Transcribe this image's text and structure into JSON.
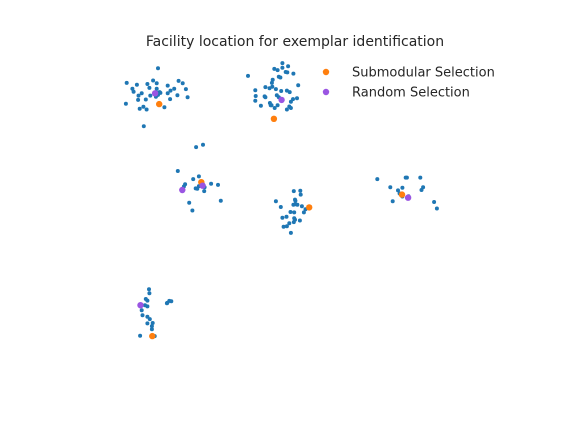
{
  "chart_data": {
    "type": "scatter",
    "title": "Facility location for exemplar identification",
    "xlabel": "",
    "ylabel": "",
    "axes_visible": false,
    "grid": false,
    "xlim": [
      -1,
      10
    ],
    "ylim": [
      -0.5,
      8.5
    ],
    "legend": {
      "placement": "top-right",
      "entries": [
        "Submodular Selection",
        "Random Selection"
      ]
    },
    "series": [
      {
        "name": "",
        "role": "data-points",
        "color": "#1f77b4",
        "points": [
          [
            1.0,
            7.71
          ],
          [
            1.07,
            7.29
          ],
          [
            0.64,
            7.32
          ],
          [
            1.09,
            7.64
          ],
          [
            0.91,
            7.52
          ],
          [
            0.49,
            7.5
          ],
          [
            0.52,
            7.42
          ],
          [
            1.42,
            7.23
          ],
          [
            1.52,
            7.5
          ],
          [
            1.18,
            7.39
          ],
          [
            1.36,
            7.58
          ],
          [
            1.43,
            7.45
          ],
          [
            0.63,
            7.21
          ],
          [
            0.6,
            7.6
          ],
          [
            0.35,
            7.65
          ],
          [
            0.84,
            6.96
          ],
          [
            0.82,
            7.22
          ],
          [
            1.36,
            7.38
          ],
          [
            0.67,
            6.98
          ],
          [
            1.12,
            7.34
          ],
          [
            1.16,
            7.41
          ],
          [
            1.63,
            7.7
          ],
          [
            0.33,
            7.11
          ],
          [
            1.81,
            7.49
          ],
          [
            1.6,
            7.33
          ],
          [
            1.73,
            7.64
          ],
          [
            0.93,
            7.32
          ],
          [
            1.09,
            7.5
          ],
          [
            0.77,
            6.53
          ],
          [
            1.12,
            8.03
          ],
          [
            1.28,
            7.02
          ],
          [
            0.72,
            7.38
          ],
          [
            1.85,
            7.28
          ],
          [
            0.76,
            7.03
          ],
          [
            1.08,
            7.4
          ],
          [
            0.86,
            7.62
          ],
          [
            4.1,
            7.81
          ],
          [
            4.31,
            7.92
          ],
          [
            3.87,
            7.51
          ],
          [
            3.92,
            7.07
          ],
          [
            4.3,
            7.45
          ],
          [
            3.66,
            7.06
          ],
          [
            4.05,
            7.33
          ],
          [
            3.52,
            7.19
          ],
          [
            4.0,
            7.0
          ],
          [
            4.36,
            7.04
          ],
          [
            4.4,
            7.16
          ],
          [
            4.45,
            7.23
          ],
          [
            3.75,
            7.3
          ],
          [
            4.33,
            8.08
          ],
          [
            4.55,
            7.25
          ],
          [
            3.94,
            7.55
          ],
          [
            3.93,
            7.65
          ],
          [
            4.19,
            8.04
          ],
          [
            3.52,
            7.46
          ],
          [
            4.1,
            7.28
          ],
          [
            4.37,
            7.41
          ],
          [
            4.16,
            7.44
          ],
          [
            3.88,
            7.13
          ],
          [
            4.07,
            7.98
          ],
          [
            4.07,
            7.07
          ],
          [
            4.46,
            7.89
          ],
          [
            3.95,
            7.73
          ],
          [
            3.9,
            7.07
          ],
          [
            4.4,
            7.0
          ],
          [
            4.27,
            7.93
          ],
          [
            3.34,
            7.83
          ],
          [
            4.14,
            7.79
          ],
          [
            3.77,
            7.28
          ],
          [
            3.99,
            8.01
          ],
          [
            4.3,
            6.96
          ],
          [
            3.77,
            7.54
          ],
          [
            4.19,
            8.16
          ],
          [
            4.58,
            7.59
          ],
          [
            4.03,
            7.49
          ],
          [
            3.53,
            7.31
          ],
          [
            2.27,
            4.95
          ],
          [
            2.13,
            5.23
          ],
          [
            1.99,
            5.16
          ],
          [
            1.79,
            5.03
          ],
          [
            2.22,
            5.04
          ],
          [
            2.43,
            5.04
          ],
          [
            1.76,
            4.97
          ],
          [
            2.67,
            4.6
          ],
          [
            2.6,
            5.01
          ],
          [
            2.26,
            4.85
          ],
          [
            1.89,
            4.55
          ],
          [
            1.97,
            4.35
          ],
          [
            2.18,
            4.99
          ],
          [
            2.05,
            4.92
          ],
          [
            2.22,
            5.05
          ],
          [
            2.06,
            5.99
          ],
          [
            2.23,
            6.05
          ],
          [
            1.61,
            5.37
          ],
          [
            2.09,
            4.91
          ],
          [
            2.13,
            4.98
          ],
          [
            4.15,
            4.44
          ],
          [
            4.5,
            4.63
          ],
          [
            4.76,
            4.38
          ],
          [
            4.46,
            4.5
          ],
          [
            4.36,
            4.02
          ],
          [
            4.29,
            4.19
          ],
          [
            4.63,
            4.86
          ],
          [
            4.5,
            4.11
          ],
          [
            4.48,
            4.15
          ],
          [
            4.64,
            4.76
          ],
          [
            4.67,
            4.46
          ],
          [
            4.19,
            4.16
          ],
          [
            4.72,
            4.3
          ],
          [
            4.03,
            4.59
          ],
          [
            4.47,
            4.85
          ],
          [
            4.51,
            4.51
          ],
          [
            4.4,
            3.77
          ],
          [
            4.22,
            3.93
          ],
          [
            4.48,
            4.3
          ],
          [
            4.62,
            4.09
          ],
          [
            4.39,
            4.31
          ],
          [
            4.47,
            4.05
          ],
          [
            4.51,
            4.6
          ],
          [
            4.56,
            4.5
          ],
          [
            4.3,
            3.94
          ],
          [
            6.85,
            4.95
          ],
          [
            7.26,
            5.2
          ],
          [
            6.91,
            4.59
          ],
          [
            7.04,
            4.87
          ],
          [
            7.23,
            5.2
          ],
          [
            7.3,
            4.72
          ],
          [
            7.15,
            4.94
          ],
          [
            8.0,
            4.4
          ],
          [
            7.93,
            4.57
          ],
          [
            7.08,
            4.79
          ],
          [
            7.62,
            4.88
          ],
          [
            7.15,
            4.71
          ],
          [
            6.53,
            5.16
          ],
          [
            7.66,
            4.95
          ],
          [
            7.59,
            5.2
          ],
          [
            0.86,
            2.02
          ],
          [
            0.74,
            1.64
          ],
          [
            0.91,
            2.21
          ],
          [
            0.8,
            1.9
          ],
          [
            0.86,
            1.87
          ],
          [
            0.82,
            2.06
          ],
          [
            1.4,
            2.01
          ],
          [
            1.35,
            1.96
          ],
          [
            1.34,
            1.95
          ],
          [
            0.99,
            1.44
          ],
          [
            0.97,
            1.28
          ],
          [
            0.92,
            1.54
          ],
          [
            1.04,
            1.1
          ],
          [
            0.68,
            1.11
          ],
          [
            0.9,
            2.31
          ],
          [
            0.97,
            1.36
          ],
          [
            0.86,
            1.43
          ],
          [
            0.72,
            1.77
          ],
          [
            0.86,
            1.6
          ],
          [
            1.45,
            2.0
          ]
        ]
      },
      {
        "name": "Submodular Selection",
        "color": "#ff7f0e",
        "points": [
          [
            1.15,
            7.1
          ],
          [
            3.98,
            6.72
          ],
          [
            2.19,
            5.08
          ],
          [
            4.85,
            4.43
          ],
          [
            7.14,
            4.76
          ],
          [
            0.98,
            1.1
          ]
        ]
      },
      {
        "name": "Random Selection",
        "color": "#9a55e2",
        "points": [
          [
            1.05,
            7.38
          ],
          [
            4.17,
            7.21
          ],
          [
            2.22,
            4.99
          ],
          [
            1.72,
            4.88
          ],
          [
            7.29,
            4.68
          ],
          [
            0.69,
            1.9
          ]
        ]
      }
    ]
  }
}
